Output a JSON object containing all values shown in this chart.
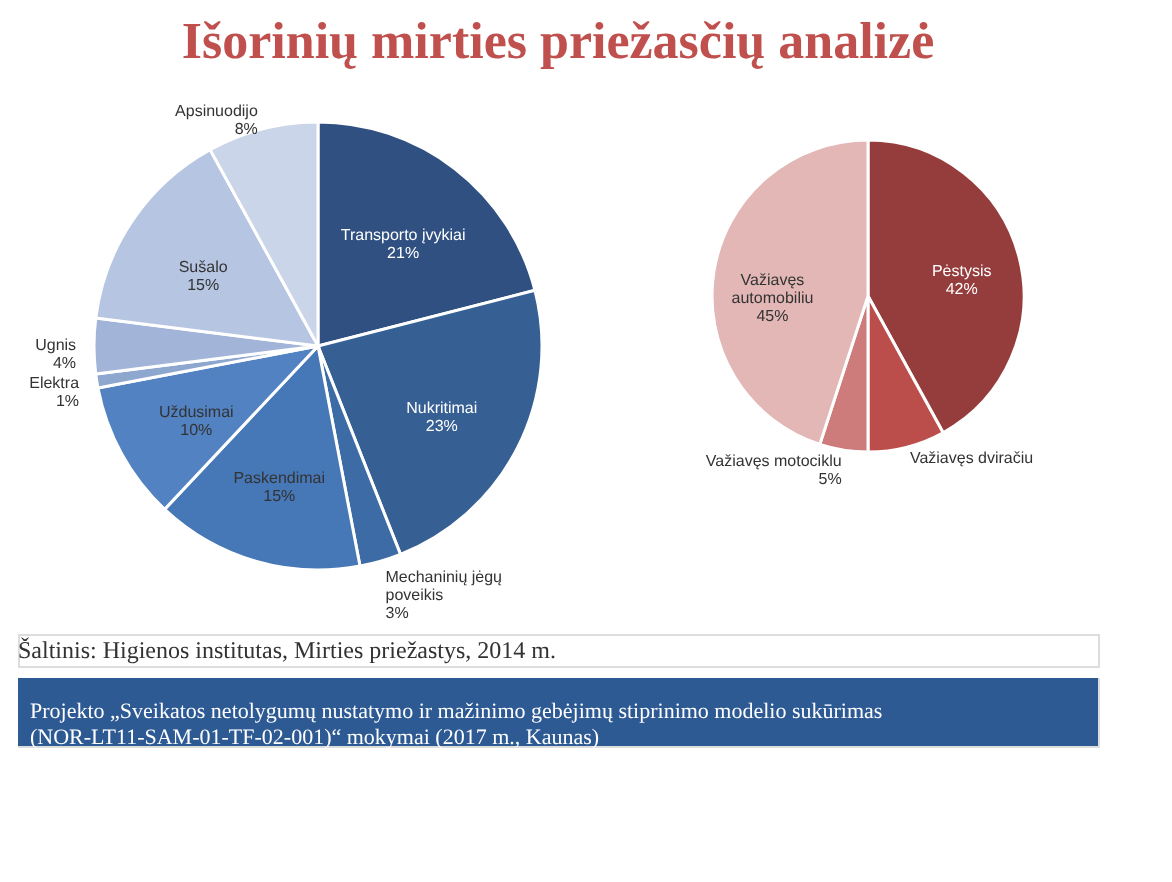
{
  "chart_data": [
    {
      "type": "pie",
      "title": "Išorinių mirties priežasčių analizė",
      "categories": [
        "Transporto įvykiai",
        "Nukritimai",
        "Mechaninių jėgų poveikis",
        "Paskendimai",
        "Uždusimai",
        "Elektra",
        "Ugnis",
        "Sušalo",
        "Apsinuodijo"
      ],
      "values": [
        21,
        23,
        3,
        15,
        10,
        1,
        4,
        15,
        8
      ],
      "value_labels": [
        "21%",
        "23%",
        "3%",
        "15%",
        "10%",
        "1%",
        "4%",
        "15%",
        "8%"
      ],
      "colors": [
        "#2f5080",
        "#365f93",
        "#3d6ba5",
        "#4677b6",
        "#5282c2",
        "#8ea7cf",
        "#a2b5d8",
        "#b6c5e1",
        "#cbd5e9"
      ],
      "legend": false,
      "annotations": [
        "Šaltinis: Higienos institutas, Mirties priežastys, 2014 m.",
        "Projekto „Sveikatos netolygumų nustatymo ir mažinimo gebėjimų stiprinimo modelio sukūrimas (NOR-LT11-SAM-01-TF-02-001)“ mokymai (2017 m., Kaunas)"
      ]
    },
    {
      "type": "pie",
      "categories": [
        "Pėstysis",
        "Važiavęs dviračiu",
        "Važiavęs motociklu",
        "Važiavęs automobiliu"
      ],
      "values": [
        42,
        8,
        5,
        45
      ],
      "value_labels": [
        "42%",
        null,
        "5%",
        "45%"
      ],
      "colors": [
        "#953d3c",
        "#bb4d4a",
        "#cd7c7b",
        "#e2b7b6"
      ],
      "legend": false
    }
  ]
}
